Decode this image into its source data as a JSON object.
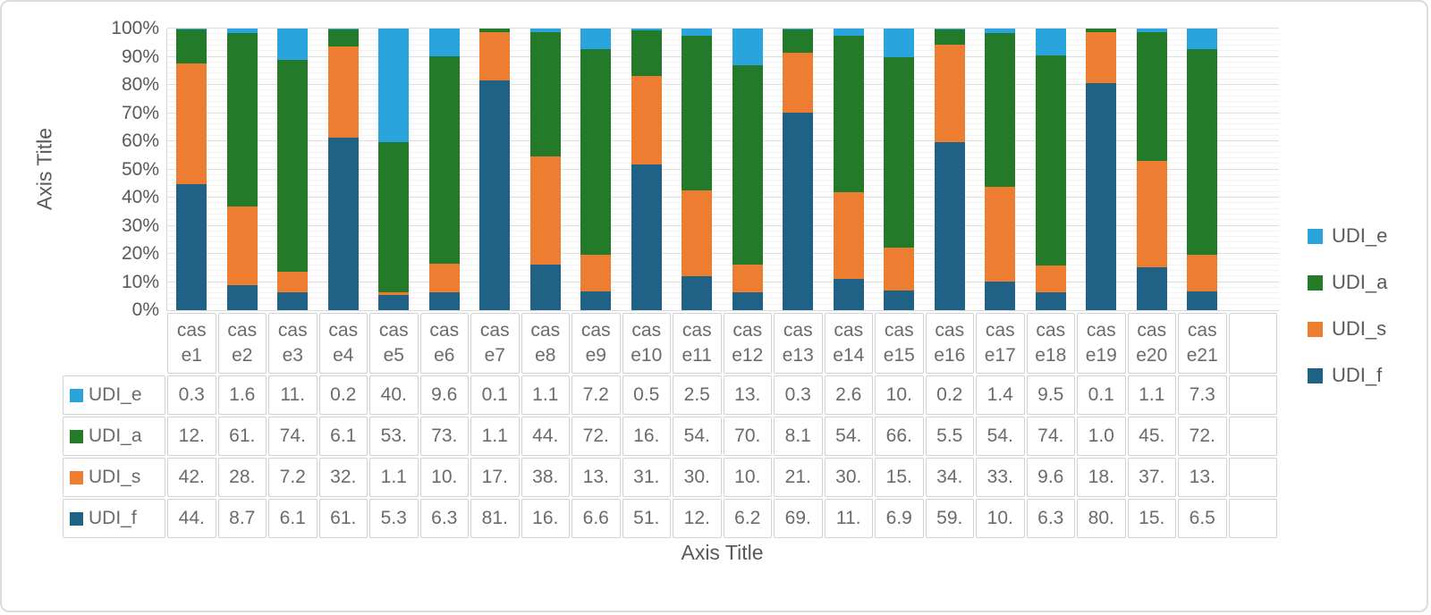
{
  "chart": {
    "y_axis_title": "Axis Title",
    "x_axis_title": "Axis Title",
    "y_ticks": [
      "100%",
      "90%",
      "80%",
      "70%",
      "60%",
      "50%",
      "40%",
      "30%",
      "20%",
      "10%",
      "0%"
    ],
    "colors": {
      "text": "#595959",
      "grid_major": "#DEDEDE",
      "grid_minor": "#F2F2F2",
      "table_border": "#D2D2D2"
    }
  },
  "chart_data": {
    "type": "bar",
    "subtype": "stacked-100-percent",
    "title": "",
    "xlabel": "Axis Title",
    "ylabel": "Axis Title",
    "ylim": [
      0,
      100
    ],
    "grid": "horizontal major every 10% with minor every 2%",
    "legend_position": "right",
    "has_data_table": true,
    "categories": [
      "case1",
      "case2",
      "case3",
      "case4",
      "case5",
      "case6",
      "case7",
      "case8",
      "case9",
      "case10",
      "case11",
      "case12",
      "case13",
      "case14",
      "case15",
      "case16",
      "case17",
      "case18",
      "case19",
      "case20",
      "case21"
    ],
    "stack_order_bottom_to_top": [
      "UDI_f",
      "UDI_s",
      "UDI_a",
      "UDI_e"
    ],
    "series": [
      {
        "name": "UDI_e",
        "color": "#29A4DC",
        "values": [
          0.3,
          1.6,
          11,
          0.2,
          40,
          9.6,
          0.1,
          1.1,
          7.2,
          0.5,
          2.5,
          13,
          0.3,
          2.6,
          10,
          0.2,
          1.4,
          9.5,
          0.1,
          1.1,
          7.3
        ],
        "display": [
          "0.3",
          "1.6",
          "11.",
          "0.2",
          "40.",
          "9.6",
          "0.1",
          "1.1",
          "7.2",
          "0.5",
          "2.5",
          "13.",
          "0.3",
          "2.6",
          "10.",
          "0.2",
          "1.4",
          "9.5",
          "0.1",
          "1.1",
          "7.3"
        ]
      },
      {
        "name": "UDI_a",
        "color": "#237A28",
        "values": [
          12,
          61,
          74,
          6.1,
          53,
          73,
          1.1,
          44,
          72,
          16,
          54,
          70,
          8.1,
          54,
          66,
          5.5,
          54,
          74,
          1.0,
          45,
          72
        ],
        "display": [
          "12.",
          "61.",
          "74.",
          "6.1",
          "53.",
          "73.",
          "1.1",
          "44.",
          "72.",
          "16.",
          "54.",
          "70.",
          "8.1",
          "54.",
          "66.",
          "5.5",
          "54.",
          "74.",
          "1.0",
          "45.",
          "72."
        ]
      },
      {
        "name": "UDI_s",
        "color": "#ED7D31",
        "values": [
          42,
          28,
          7.2,
          32,
          1.1,
          10,
          17,
          38,
          13,
          31,
          30,
          10,
          21,
          30,
          15,
          34,
          33,
          9.6,
          18,
          37,
          13
        ],
        "display": [
          "42.",
          "28.",
          "7.2",
          "32.",
          "1.1",
          "10.",
          "17.",
          "38.",
          "13.",
          "31.",
          "30.",
          "10.",
          "21.",
          "30.",
          "15.",
          "34.",
          "33.",
          "9.6",
          "18.",
          "37.",
          "13."
        ]
      },
      {
        "name": "UDI_f",
        "color": "#1F6286",
        "values": [
          44,
          8.7,
          6.1,
          61,
          5.3,
          6.3,
          81,
          16,
          6.6,
          51,
          12,
          6.2,
          69,
          11,
          6.9,
          59,
          10,
          6.3,
          80,
          15,
          6.5
        ],
        "display": [
          "44.",
          "8.7",
          "6.1",
          "61.",
          "5.3",
          "6.3",
          "81.",
          "16.",
          "6.6",
          "51.",
          "12.",
          "6.2",
          "69.",
          "11.",
          "6.9",
          "59.",
          "10.",
          "6.3",
          "80.",
          "15.",
          "6.5"
        ]
      }
    ]
  }
}
